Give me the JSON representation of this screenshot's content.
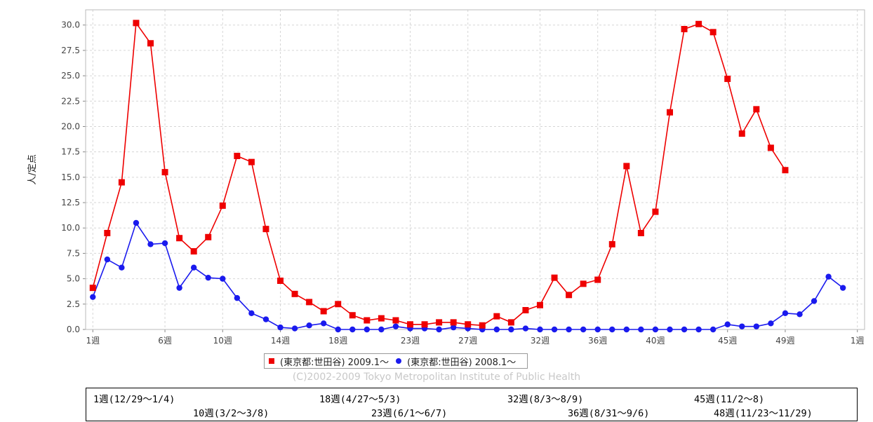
{
  "chart_data": {
    "type": "line",
    "ylabel": "人/定点",
    "ylim": [
      0,
      31.5
    ],
    "yticks": [
      "0.0",
      "2.5",
      "5.0",
      "7.5",
      "10.0",
      "12.5",
      "15.0",
      "17.5",
      "20.0",
      "22.5",
      "25.0",
      "27.5",
      "30.0"
    ],
    "xlim": [
      0.5,
      54.5
    ],
    "grid": true,
    "xticks": [
      {
        "x": 1,
        "label": "1週"
      },
      {
        "x": 6,
        "label": "6週"
      },
      {
        "x": 10,
        "label": "10週"
      },
      {
        "x": 14,
        "label": "14週"
      },
      {
        "x": 18,
        "label": "18週"
      },
      {
        "x": 23,
        "label": "23週"
      },
      {
        "x": 27,
        "label": "27週"
      },
      {
        "x": 32,
        "label": "32週"
      },
      {
        "x": 36,
        "label": "36週"
      },
      {
        "x": 40,
        "label": "40週"
      },
      {
        "x": 45,
        "label": "45週"
      },
      {
        "x": 49,
        "label": "49週"
      },
      {
        "x": 54,
        "label": "1週"
      }
    ],
    "series": [
      {
        "name": "(東京都:世田谷) 2009.1～",
        "color": "#ee0000",
        "marker": "square",
        "x": [
          1,
          2,
          3,
          4,
          5,
          6,
          7,
          8,
          9,
          10,
          11,
          12,
          13,
          14,
          15,
          16,
          17,
          18,
          19,
          20,
          21,
          22,
          23,
          24,
          25,
          26,
          27,
          28,
          29,
          30,
          31,
          32,
          33,
          34,
          35,
          36,
          37,
          38,
          39,
          40,
          41,
          42,
          43,
          44,
          45,
          46,
          47,
          48,
          49
        ],
        "values": [
          4.1,
          9.5,
          14.5,
          30.2,
          28.2,
          15.5,
          9.0,
          7.7,
          9.1,
          12.2,
          17.1,
          16.5,
          9.9,
          4.8,
          3.5,
          2.7,
          1.8,
          2.5,
          1.4,
          0.9,
          1.1,
          0.9,
          0.5,
          0.5,
          0.7,
          0.7,
          0.5,
          0.4,
          1.3,
          0.7,
          1.9,
          2.4,
          5.1,
          3.4,
          4.5,
          4.9,
          8.4,
          16.1,
          9.5,
          11.6,
          21.4,
          29.6,
          30.1,
          29.3,
          24.7,
          19.3,
          21.7,
          17.9,
          15.7
        ]
      },
      {
        "name": "(東京都:世田谷) 2008.1～",
        "color": "#1a1aee",
        "marker": "circle",
        "x": [
          1,
          2,
          3,
          4,
          5,
          6,
          7,
          8,
          9,
          10,
          11,
          12,
          13,
          14,
          15,
          16,
          17,
          18,
          19,
          20,
          21,
          22,
          23,
          24,
          25,
          26,
          27,
          28,
          29,
          30,
          31,
          32,
          33,
          34,
          35,
          36,
          37,
          38,
          39,
          40,
          41,
          42,
          43,
          44,
          45,
          46,
          47,
          48,
          49,
          50,
          51,
          52,
          53
        ],
        "values": [
          3.2,
          6.9,
          6.1,
          10.5,
          8.4,
          8.5,
          4.1,
          6.1,
          5.1,
          5.0,
          3.1,
          1.6,
          1.0,
          0.2,
          0.1,
          0.4,
          0.6,
          0.0,
          0.0,
          0.0,
          0.0,
          0.3,
          0.1,
          0.1,
          0.0,
          0.2,
          0.1,
          0.0,
          0.0,
          0.0,
          0.1,
          0.0,
          0.0,
          0.0,
          0.0,
          0.0,
          0.0,
          0.0,
          0.0,
          0.0,
          0.0,
          0.0,
          0.0,
          0.0,
          0.5,
          0.3,
          0.3,
          0.6,
          1.6,
          1.5,
          2.8,
          5.2,
          4.1
        ]
      }
    ]
  },
  "copyright": "(C)2002-2009 Tokyo Metropolitan Institute of Public Health",
  "notes": [
    "1週(12/29～1/4)",
    "18週(4/27～5/3)",
    "32週(8/3～8/9)",
    "45週(11/2～8)",
    "10週(3/2～3/8)",
    "23週(6/1～6/7)",
    "36週(8/31～9/6)",
    "48週(11/23～11/29)"
  ]
}
